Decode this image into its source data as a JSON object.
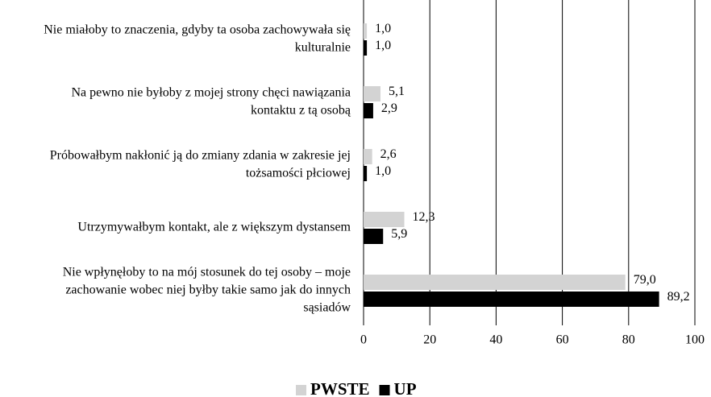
{
  "chart_data": {
    "type": "bar",
    "orientation": "horizontal",
    "categories": [
      [
        "Nie miałoby to znaczenia, gdyby ta osoba zachowywała się",
        "kulturalnie"
      ],
      [
        "Na pewno nie byłoby z mojej strony chęci nawiązania",
        "kontaktu z tą osobą"
      ],
      [
        "Próbowałbym nakłonić ją do zmiany zdania w zakresie jej",
        "tożsamości płciowej"
      ],
      [
        "Utrzymywałbym kontakt, ale z większym dystansem"
      ],
      [
        "Nie wpłynęłoby to na mój stosunek do tej osoby – moje",
        "zachowanie wobec niej byłby takie samo jak do innych",
        "sąsiadów"
      ]
    ],
    "series": [
      {
        "name": "PWSTE",
        "color": "#d3d3d3",
        "values": [
          1.0,
          5.1,
          2.6,
          12.3,
          79.0
        ],
        "value_labels": [
          "1,0",
          "5,1",
          "2,6",
          "12,3",
          "79,0"
        ]
      },
      {
        "name": "UP",
        "color": "#000000",
        "values": [
          1.0,
          2.9,
          1.0,
          5.9,
          89.2
        ],
        "value_labels": [
          "1,0",
          "2,9",
          "1,0",
          "5,9",
          "89,2"
        ]
      }
    ],
    "xlim": [
      0,
      100
    ],
    "xticks": [
      0,
      20,
      40,
      60,
      80,
      100
    ],
    "grid": true,
    "legend": "bottom"
  }
}
